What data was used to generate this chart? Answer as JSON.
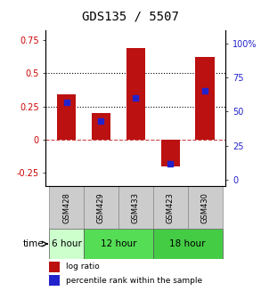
{
  "title": "GDS135 / 5507",
  "samples": [
    "GSM428",
    "GSM429",
    "GSM433",
    "GSM423",
    "GSM430"
  ],
  "log_ratios": [
    0.34,
    0.2,
    0.69,
    -0.2,
    0.62
  ],
  "percentile_ranks": [
    57,
    43,
    60,
    12,
    65
  ],
  "bar_color": "#bb1111",
  "dot_color": "#2222cc",
  "ylim_left": [
    -0.35,
    0.82
  ],
  "ylim_right": [
    -4.67,
    109.3
  ],
  "yticks_left": [
    -0.25,
    0,
    0.25,
    0.5,
    0.75
  ],
  "yticks_right": [
    0,
    25,
    50,
    75,
    100
  ],
  "hlines": [
    0.5,
    0.25
  ],
  "zero_line_color": "#cc4444",
  "time_groups": [
    {
      "label": "6 hour",
      "samples": [
        "GSM428"
      ],
      "color": "#ccffcc"
    },
    {
      "label": "12 hour",
      "samples": [
        "GSM429",
        "GSM433"
      ],
      "color": "#55dd55"
    },
    {
      "label": "18 hour",
      "samples": [
        "GSM423",
        "GSM430"
      ],
      "color": "#44cc44"
    }
  ],
  "sample_bg_color": "#cccccc",
  "bar_width": 0.55,
  "legend_log_ratio_label": "log ratio",
  "legend_percentile_label": "percentile rank within the sample",
  "title_fontsize": 10,
  "axis_label_color_left": "#cc0000",
  "axis_label_color_right": "#2222cc",
  "tick_fontsize": 7,
  "sample_fontsize": 6,
  "time_fontsize": 7.5,
  "legend_fontsize": 6.5
}
